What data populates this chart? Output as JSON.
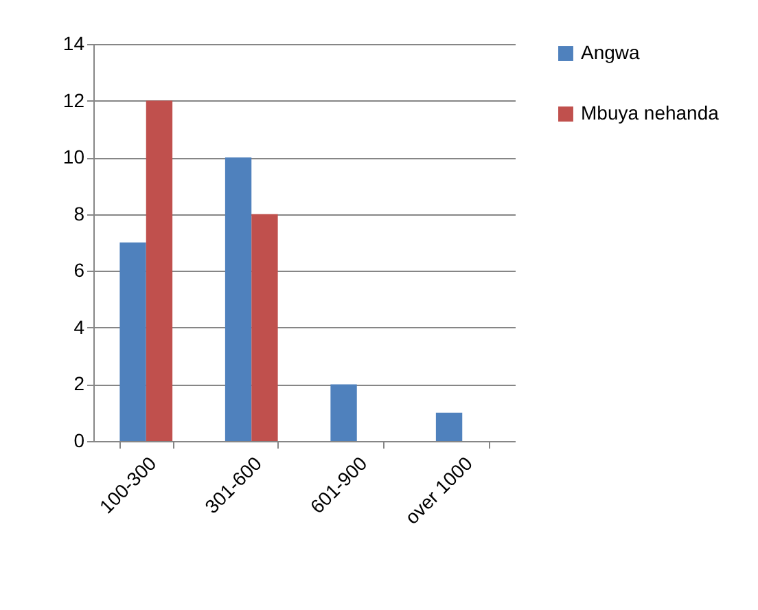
{
  "chart_data": {
    "type": "bar",
    "categories": [
      "100-300",
      "301-600",
      "601-900",
      "over 1000"
    ],
    "series": [
      {
        "name": "Angwa",
        "color": "#4f81bd",
        "values": [
          7,
          10,
          2,
          1
        ]
      },
      {
        "name": "Mbuya nehanda",
        "color": "#c0504d",
        "values": [
          12,
          8,
          0,
          0
        ]
      }
    ],
    "ylim": [
      0,
      14
    ],
    "yticks": [
      0,
      2,
      4,
      6,
      8,
      10,
      12,
      14
    ],
    "grid": "y",
    "legend": "right"
  }
}
